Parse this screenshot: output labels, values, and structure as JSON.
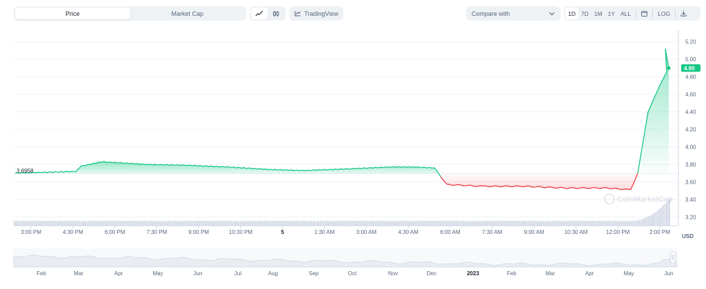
{
  "toolbar": {
    "tabs": [
      "Price",
      "Market Cap"
    ],
    "active_tab": "Price",
    "chart_type_icons": [
      "line-chart-icon",
      "candlestick-icon"
    ],
    "tradingview_label": "TradingView",
    "compare_label": "Compare with",
    "ranges": [
      "1D",
      "7D",
      "1M",
      "1Y",
      "ALL"
    ],
    "active_range": "1D",
    "log_label": "LOG"
  },
  "chart": {
    "open_price_label": "3.6958",
    "current_price_label": "4.90",
    "currency": "USD",
    "watermark": "CoinMarketCap",
    "y_ticks": [
      "5.20",
      "5.00",
      "4.80",
      "4.60",
      "4.40",
      "4.20",
      "4.00",
      "3.80",
      "3.60",
      "3.40",
      "3.20"
    ],
    "x_ticks": [
      "3:00 PM",
      "4:30 PM",
      "6:00 PM",
      "7:30 PM",
      "9:00 PM",
      "10:30 PM",
      "5",
      "1:30 AM",
      "3:00 AM",
      "4:30 AM",
      "6:00 AM",
      "7:30 AM",
      "9:00 AM",
      "10:30 AM",
      "12:00 PM",
      "2:00 PM"
    ],
    "colors": {
      "up": "#16c784",
      "down": "#ea3943",
      "grid": "#eff2f5"
    }
  },
  "navigator": {
    "labels": [
      "Feb",
      "Mar",
      "Apr",
      "May",
      "Jun",
      "Jul",
      "Aug",
      "Sep",
      "Oct",
      "Nov",
      "Dec",
      "2023",
      "Feb",
      "Mar",
      "Apr",
      "May",
      "Jun"
    ]
  },
  "chart_data": {
    "type": "line",
    "title": "",
    "xlabel": "",
    "ylabel": "USD",
    "ylim": [
      3.1,
      5.3
    ],
    "baseline": 3.6958,
    "x": [
      "3:00 PM",
      "4:30 PM",
      "5:00 PM",
      "6:00 PM",
      "7:30 PM",
      "9:00 PM",
      "10:30 PM",
      "12:00 AM",
      "1:30 AM",
      "3:00 AM",
      "4:30 AM",
      "5:30 AM",
      "6:00 AM",
      "6:30 AM",
      "7:30 AM",
      "9:00 AM",
      "10:30 AM",
      "12:00 PM",
      "1:00 PM",
      "1:30 PM",
      "1:45 PM",
      "2:00 PM",
      "2:10 PM"
    ],
    "values": [
      3.7,
      3.72,
      3.78,
      3.83,
      3.8,
      3.79,
      3.77,
      3.74,
      3.73,
      3.75,
      3.77,
      3.77,
      3.76,
      3.57,
      3.55,
      3.55,
      3.53,
      3.53,
      3.51,
      3.7,
      4.4,
      4.72,
      4.9
    ]
  }
}
